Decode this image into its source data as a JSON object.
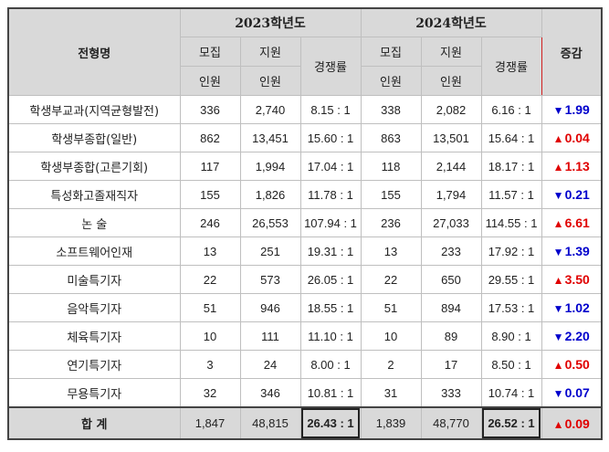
{
  "header": {
    "type_label": "전형명",
    "year_2023": "2023학년도",
    "year_2024": "2024학년도",
    "change_label": "증감",
    "recruit_top": "모집",
    "recruit_bottom": "인원",
    "apply_top": "지원",
    "apply_bottom": "인원",
    "ratio_label": "경쟁률"
  },
  "colors": {
    "up": "#e00000",
    "down": "#0000cc",
    "header_bg": "#d9d9d9"
  },
  "rows": [
    {
      "name": "학생부교과(지역균형발전)",
      "r23": "336",
      "a23": "2,740",
      "c23": "8.15 : 1",
      "r24": "338",
      "a24": "2,082",
      "c24": "6.16 : 1",
      "dir": "down",
      "chg": "1.99"
    },
    {
      "name": "학생부종합(일반)",
      "r23": "862",
      "a23": "13,451",
      "c23": "15.60 : 1",
      "r24": "863",
      "a24": "13,501",
      "c24": "15.64 : 1",
      "dir": "up",
      "chg": "0.04"
    },
    {
      "name": "학생부종합(고른기회)",
      "r23": "117",
      "a23": "1,994",
      "c23": "17.04 : 1",
      "r24": "118",
      "a24": "2,144",
      "c24": "18.17 : 1",
      "dir": "up",
      "chg": "1.13"
    },
    {
      "name": "특성화고졸재직자",
      "r23": "155",
      "a23": "1,826",
      "c23": "11.78 : 1",
      "r24": "155",
      "a24": "1,794",
      "c24": "11.57 : 1",
      "dir": "down",
      "chg": "0.21"
    },
    {
      "name": "논 술",
      "r23": "246",
      "a23": "26,553",
      "c23": "107.94 : 1",
      "r24": "236",
      "a24": "27,033",
      "c24": "114.55 : 1",
      "dir": "up",
      "chg": "6.61"
    },
    {
      "name": "소프트웨어인재",
      "r23": "13",
      "a23": "251",
      "c23": "19.31 : 1",
      "r24": "13",
      "a24": "233",
      "c24": "17.92 : 1",
      "dir": "down",
      "chg": "1.39"
    },
    {
      "name": "미술특기자",
      "r23": "22",
      "a23": "573",
      "c23": "26.05 : 1",
      "r24": "22",
      "a24": "650",
      "c24": "29.55 : 1",
      "dir": "up",
      "chg": "3.50"
    },
    {
      "name": "음악특기자",
      "r23": "51",
      "a23": "946",
      "c23": "18.55 : 1",
      "r24": "51",
      "a24": "894",
      "c24": "17.53 : 1",
      "dir": "down",
      "chg": "1.02"
    },
    {
      "name": "체육특기자",
      "r23": "10",
      "a23": "111",
      "c23": "11.10 : 1",
      "r24": "10",
      "a24": "89",
      "c24": "8.90 : 1",
      "dir": "down",
      "chg": "2.20"
    },
    {
      "name": "연기특기자",
      "r23": "3",
      "a23": "24",
      "c23": "8.00 : 1",
      "r24": "2",
      "a24": "17",
      "c24": "8.50 : 1",
      "dir": "up",
      "chg": "0.50"
    },
    {
      "name": "무용특기자",
      "r23": "32",
      "a23": "346",
      "c23": "10.81 : 1",
      "r24": "31",
      "a24": "333",
      "c24": "10.74 : 1",
      "dir": "down",
      "chg": "0.07"
    }
  ],
  "total": {
    "name": "합 계",
    "r23": "1,847",
    "a23": "48,815",
    "c23": "26.43 : 1",
    "r24": "1,839",
    "a24": "48,770",
    "c24": "26.52 : 1",
    "dir": "up",
    "chg": "0.09"
  },
  "arrows": {
    "up": "▲",
    "down": "▼"
  }
}
